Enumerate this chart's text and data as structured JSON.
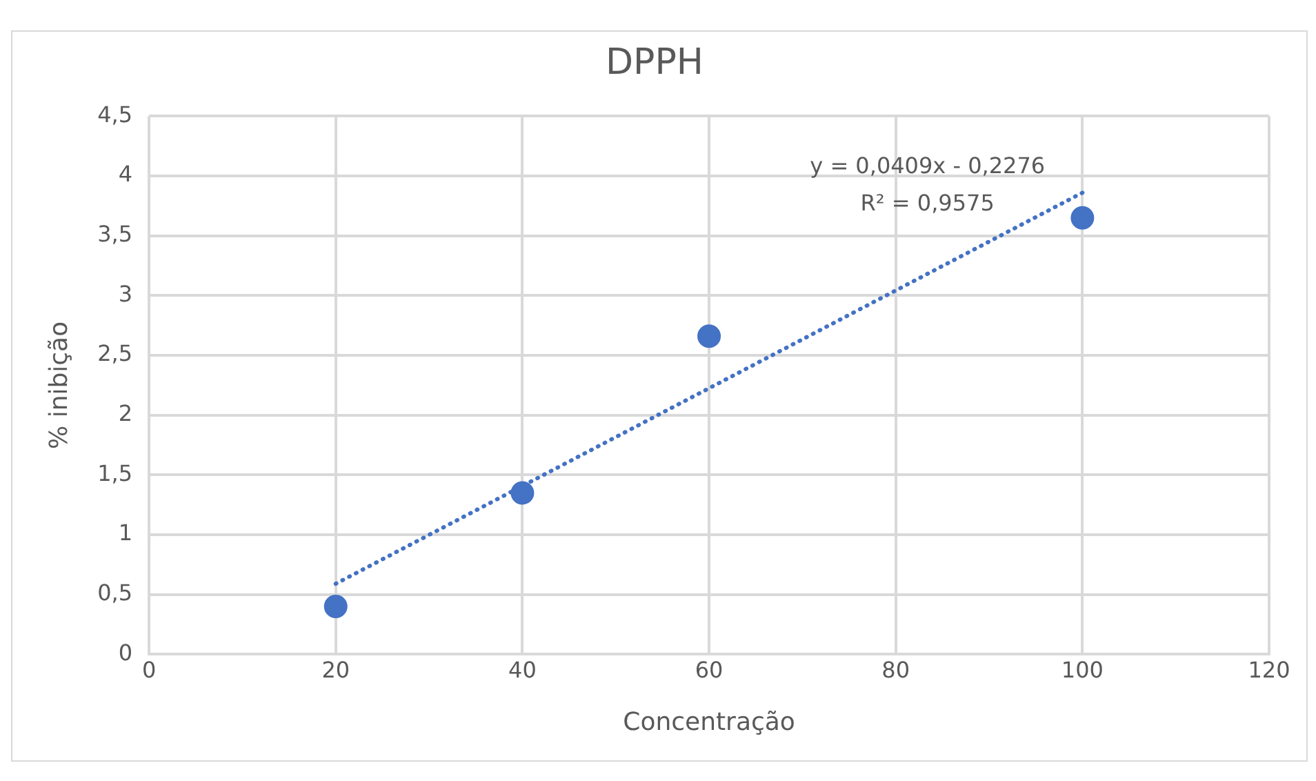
{
  "chart_data": {
    "type": "scatter",
    "title": "DPPH",
    "xlabel": "Concentração",
    "ylabel": "% inibição",
    "xlim": [
      0,
      120
    ],
    "xticks": [
      0,
      20,
      40,
      60,
      80,
      100,
      120
    ],
    "ylim": [
      0,
      4.5
    ],
    "yticks": [
      {
        "value": 0,
        "label": "0"
      },
      {
        "value": 0.5,
        "label": "0,5"
      },
      {
        "value": 1,
        "label": "1"
      },
      {
        "value": 1.5,
        "label": "1,5"
      },
      {
        "value": 2,
        "label": "2"
      },
      {
        "value": 2.5,
        "label": "2,5"
      },
      {
        "value": 3,
        "label": "3"
      },
      {
        "value": 3.5,
        "label": "3,5"
      },
      {
        "value": 4,
        "label": "4"
      },
      {
        "value": 4.5,
        "label": "4,5"
      }
    ],
    "grid": true,
    "legend": false,
    "series": [
      {
        "type": "scatter",
        "color": "#4472c4",
        "marker": "circle",
        "x": [
          20,
          40,
          60,
          100
        ],
        "values": [
          0.4,
          1.35,
          2.66,
          3.65
        ]
      },
      {
        "type": "line",
        "color": "#4472c4",
        "marker": "none",
        "line_style": "dotted",
        "x": [
          20,
          100
        ],
        "values": [
          0.59,
          3.86
        ]
      }
    ],
    "annotations": [
      "y = 0,0409x - 0,2276",
      "R² = 0,9575"
    ]
  }
}
